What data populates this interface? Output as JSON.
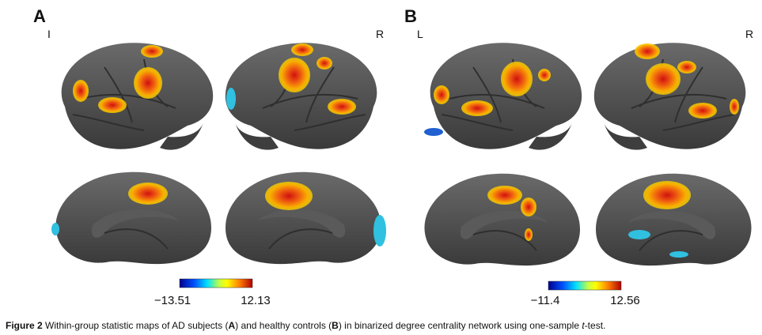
{
  "panels": [
    {
      "letter": "A",
      "left_label": "I",
      "right_label": "R",
      "colorbar": {
        "min_label": "−13.51",
        "max_label": "12.13"
      }
    },
    {
      "letter": "B",
      "left_label": "L",
      "right_label": "R",
      "colorbar": {
        "min_label": "−11.4",
        "max_label": "12.56"
      }
    }
  ],
  "caption": [
    "Figure 2",
    " Within-group statistic maps of AD subjects (",
    "A",
    ") and healthy controls (",
    "B",
    ") in binarized degree centrality network using one-sample ",
    "t",
    "-test."
  ]
}
